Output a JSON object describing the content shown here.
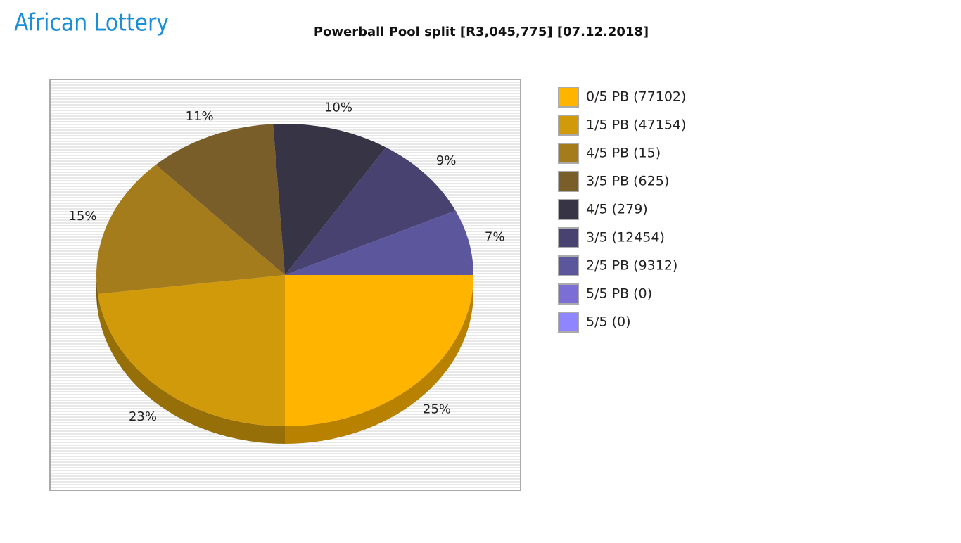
{
  "logo": "African Lottery",
  "chart_data": {
    "type": "pie",
    "title": "Powerball Pool split [R3,045,775] [07.12.2018]",
    "categories": [
      "0/5 PB (77102)",
      "1/5 PB (47154)",
      "4/5 PB (15)",
      "3/5 PB (625)",
      "4/5 (279)",
      "3/5 (12454)",
      "2/5 PB (9312)",
      "5/5 PB (0)",
      "5/5 (0)"
    ],
    "values": [
      25,
      23,
      15,
      11,
      10,
      9,
      7,
      0,
      0
    ],
    "value_labels": [
      "25%",
      "23%",
      "15%",
      "11%",
      "10%",
      "9%",
      "7%",
      null,
      null
    ],
    "colors": [
      "#ffb400",
      "#d09a0b",
      "#a57c1b",
      "#7a5e2a",
      "#363445",
      "#47426f",
      "#5c569c",
      "#7b6fd6",
      "#8f85ff"
    ],
    "legend": "right"
  }
}
